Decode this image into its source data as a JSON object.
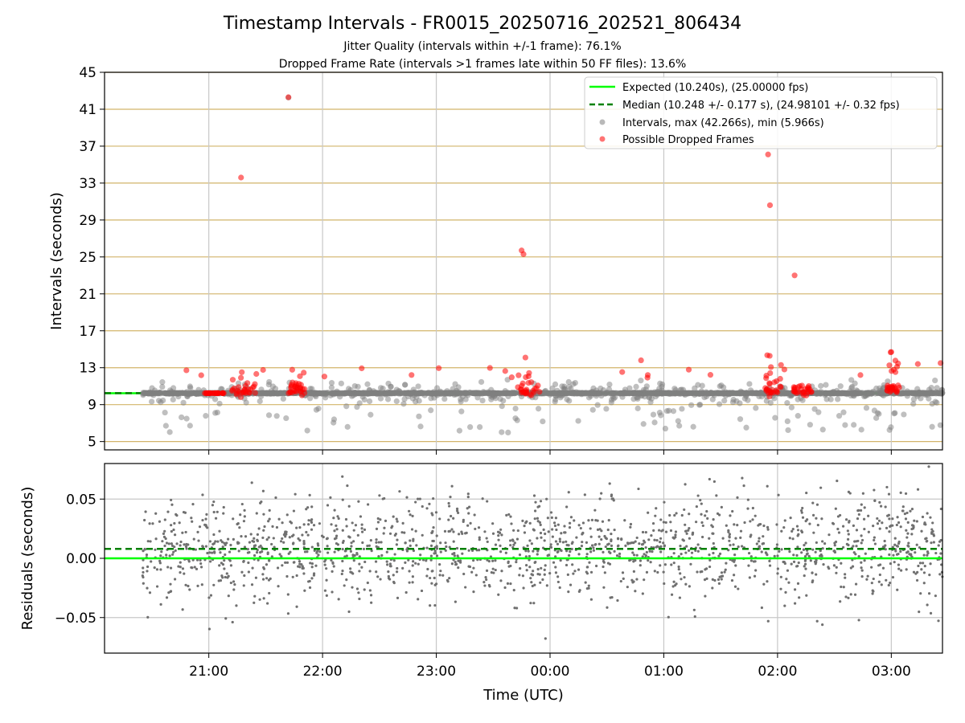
{
  "chart_data": {
    "type": "scatter",
    "title": "Timestamp Intervals - FR0015_20250716_202521_806434",
    "subtitle_lines": [
      "Jitter Quality (intervals within +/-1 frame): 76.1%",
      "Dropped Frame Rate (intervals >1 frames late within 50 FF files): 13.6%"
    ],
    "xlabel": "Time (UTC)",
    "x_unit": "UTC time",
    "x_ticks": [
      "21:00",
      "22:00",
      "23:00",
      "00:00",
      "01:00",
      "02:00",
      "03:00"
    ],
    "x_range": [
      "20:05",
      "03:27"
    ],
    "data_span": [
      "20:25",
      "03:27"
    ],
    "legend_position": "upper right",
    "panels": [
      {
        "id": "intervals",
        "ylabel": "Intervals (seconds)",
        "ylim": [
          4.1,
          45
        ],
        "y_ticks": [
          5,
          9,
          13,
          17,
          21,
          25,
          29,
          33,
          37,
          41,
          45
        ],
        "grid": "horizontal (goldenrod) and vertical (gray)",
        "series": [
          {
            "name": "Expected (10.240s), (25.00000 fps)",
            "kind": "hline",
            "y": 10.24,
            "color": "#00ff00",
            "style": "solid"
          },
          {
            "name": "Median (10.248 +/- 0.177 s), (24.98101 +/- 0.32 fps)",
            "kind": "hline",
            "y": 10.248,
            "color": "#008000",
            "style": "dashed"
          },
          {
            "name": "Intervals, max (42.266s), min (5.966s)",
            "kind": "scatter",
            "color": "#808080",
            "max": 42.266,
            "min": 5.966,
            "typical_band": [
              9.0,
              11.5
            ]
          },
          {
            "name": "Possible Dropped Frames",
            "kind": "scatter",
            "color": "#ff0000",
            "points": [
              {
                "x": "21:17",
                "y": 33.6
              },
              {
                "x": "21:42",
                "y": 42.3
              },
              {
                "x": "23:45",
                "y": 25.7
              },
              {
                "x": "23:46",
                "y": 25.3
              },
              {
                "x": "23:47",
                "y": 14.1
              },
              {
                "x": "00:48",
                "y": 13.8
              },
              {
                "x": "01:55",
                "y": 36.1
              },
              {
                "x": "01:56",
                "y": 30.6
              },
              {
                "x": "02:09",
                "y": 23.0
              },
              {
                "x": "03:00",
                "y": 14.7
              },
              {
                "x": "03:14",
                "y": 13.4
              },
              {
                "x": "03:26",
                "y": 13.5
              }
            ],
            "clusters": [
              {
                "range": [
                  "20:57",
                  "21:08"
                ],
                "y": 10.24
              },
              {
                "range": [
                  "21:12",
                  "21:25"
                ],
                "y_range": [
                  9.7,
                  12.2
                ]
              },
              {
                "range": [
                  "21:42",
                  "21:51"
                ],
                "y_range": [
                  9.7,
                  13.0
                ]
              },
              {
                "range": [
                  "23:43",
                  "23:55"
                ],
                "y_range": [
                  9.8,
                  12.8
                ]
              },
              {
                "range": [
                  "01:53",
                  "02:02"
                ],
                "y_range": [
                  9.8,
                  14.4
                ]
              },
              {
                "range": [
                  "02:08",
                  "02:18"
                ],
                "y_range": [
                  9.8,
                  11.0
                ]
              },
              {
                "range": [
                  "02:57",
                  "03:05"
                ],
                "y_range": [
                  12.2,
                  14.7
                ]
              }
            ]
          }
        ]
      },
      {
        "id": "residuals",
        "ylabel": "Residuals (seconds)",
        "ylim": [
          -0.08,
          0.08
        ],
        "y_ticks": [
          "0.05",
          "0.00",
          "−0.05"
        ],
        "grid": "gray",
        "series": [
          {
            "name": "Expected",
            "kind": "hline",
            "y": 0.0,
            "color": "#00ff00",
            "style": "solid"
          },
          {
            "name": "Median",
            "kind": "hline",
            "y": 0.008,
            "color": "#008000",
            "style": "dashed"
          },
          {
            "name": "Residuals",
            "kind": "scatter",
            "color": "#808080",
            "spread_sd": 0.022,
            "typical_band": [
              -0.05,
              0.05
            ]
          }
        ]
      }
    ]
  }
}
